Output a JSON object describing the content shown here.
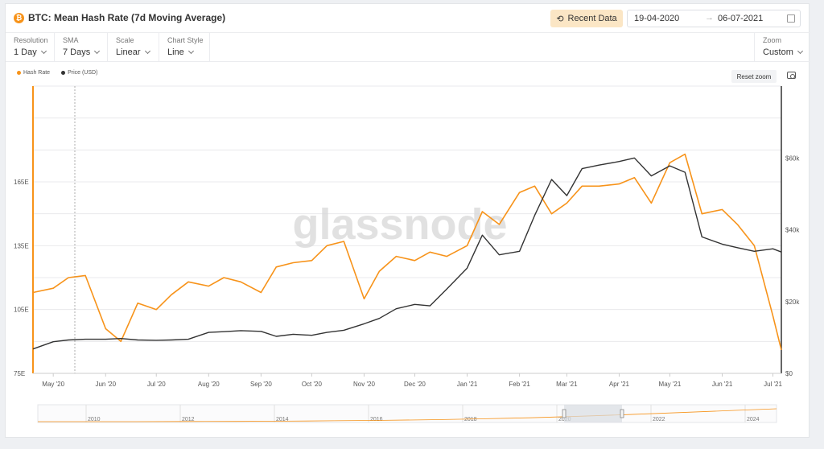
{
  "header": {
    "title": "BTC: Mean Hash Rate (7d Moving Average)",
    "btc_icon": "bitcoin-icon",
    "recent_button": "Recent Data",
    "recent_icon": "history-icon",
    "date_from": "19-04-2020",
    "date_arrow": "→",
    "date_to": "06-07-2021",
    "calendar_icon": "calendar-icon"
  },
  "controls": [
    {
      "label": "Resolution",
      "value": "1 Day"
    },
    {
      "label": "SMA",
      "value": "7 Days"
    },
    {
      "label": "Scale",
      "value": "Linear"
    },
    {
      "label": "Chart Style",
      "value": "Line"
    }
  ],
  "zoom": {
    "label": "Zoom",
    "value": "Custom"
  },
  "toolbar": {
    "reset_zoom": "Reset zoom",
    "camera_icon": "camera-icon"
  },
  "watermark": "glassnode",
  "colors": {
    "hash_rate": "#f7931a",
    "price": "#333333",
    "grid": "#e9eaec"
  },
  "chart_data": {
    "type": "line",
    "legend": [
      "Hash Rate",
      "Price (USD)"
    ],
    "legend_position": "top-left",
    "x_ticks": [
      "May '20",
      "Jun '20",
      "Jul '20",
      "Aug '20",
      "Sep '20",
      "Oct '20",
      "Nov '20",
      "Dec '20",
      "Jan '21",
      "Feb '21",
      "Mar '21",
      "Apr '21",
      "May '21",
      "Jun '21",
      "Jul '21"
    ],
    "y_left_ticks": [
      "75E",
      "105E",
      "135E",
      "165E"
    ],
    "y_right_ticks": [
      "$0",
      "$20k",
      "$40k",
      "$60k"
    ],
    "y_left_range": [
      75,
      210
    ],
    "y_right_range": [
      0,
      80000
    ],
    "x": [
      "2020-04-19",
      "2020-05-01",
      "2020-05-10",
      "2020-05-20",
      "2020-06-01",
      "2020-06-10",
      "2020-06-20",
      "2020-07-01",
      "2020-07-10",
      "2020-07-20",
      "2020-08-01",
      "2020-08-10",
      "2020-08-20",
      "2020-09-01",
      "2020-09-10",
      "2020-09-20",
      "2020-10-01",
      "2020-10-10",
      "2020-10-20",
      "2020-11-01",
      "2020-11-10",
      "2020-11-20",
      "2020-12-01",
      "2020-12-10",
      "2020-12-20",
      "2021-01-01",
      "2021-01-10",
      "2021-01-20",
      "2021-02-01",
      "2021-02-10",
      "2021-02-20",
      "2021-03-01",
      "2021-03-10",
      "2021-03-20",
      "2021-04-01",
      "2021-04-10",
      "2021-04-20",
      "2021-05-01",
      "2021-05-10",
      "2021-05-20",
      "2021-06-01",
      "2021-06-10",
      "2021-06-20",
      "2021-07-01",
      "2021-07-06"
    ],
    "series": [
      {
        "name": "Hash Rate",
        "axis": "left",
        "values": [
          113,
          115,
          120,
          121,
          96,
          90,
          108,
          105,
          112,
          118,
          116,
          120,
          118,
          113,
          125,
          127,
          128,
          135,
          137,
          110,
          123,
          130,
          128,
          132,
          130,
          135,
          151,
          145,
          160,
          163,
          150,
          155,
          163,
          163,
          164,
          167,
          155,
          174,
          178,
          150,
          152,
          145,
          135,
          102,
          86
        ]
      },
      {
        "name": "Price (USD)",
        "axis": "right",
        "values": [
          6800,
          8800,
          9300,
          9500,
          9500,
          9700,
          9300,
          9200,
          9300,
          9500,
          11400,
          11600,
          11900,
          11700,
          10300,
          10900,
          10600,
          11400,
          12000,
          13800,
          15300,
          18000,
          19200,
          18800,
          23500,
          29300,
          38500,
          33000,
          34000,
          44000,
          54000,
          49500,
          57000,
          58000,
          59000,
          60000,
          55000,
          57800,
          56000,
          38000,
          36000,
          35000,
          34000,
          34700,
          33800
        ]
      }
    ]
  }
}
